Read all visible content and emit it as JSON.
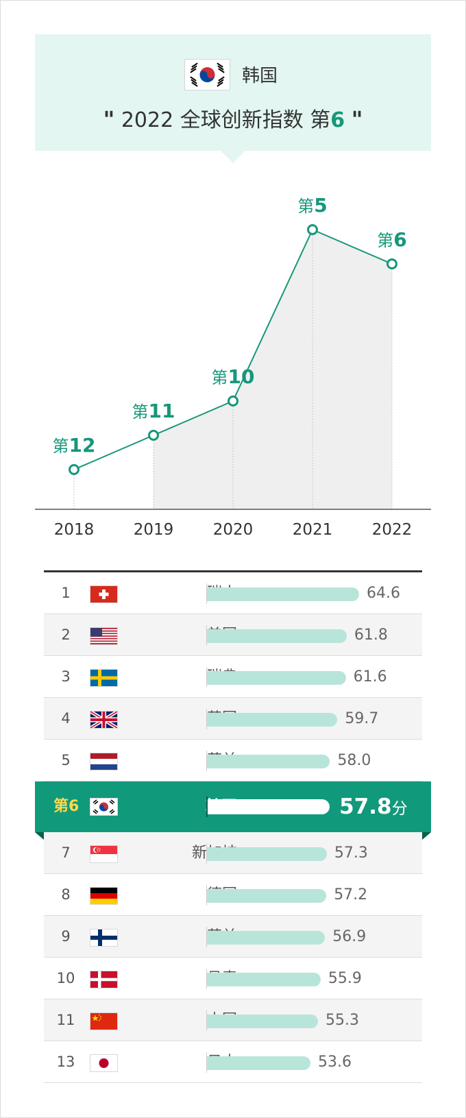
{
  "header": {
    "country": "韩国",
    "quote_open": "\"",
    "quote_close": "\"",
    "headline_prefix": "2022 全球创新指数 第",
    "headline_rank": "6"
  },
  "chart_data": {
    "type": "line",
    "x": [
      "2018",
      "2019",
      "2020",
      "2021",
      "2022"
    ],
    "series": [
      {
        "values": [
          12,
          11,
          10,
          5,
          6
        ]
      }
    ],
    "point_labels": [
      {
        "prefix": "第",
        "num": "12"
      },
      {
        "prefix": "第",
        "num": "11"
      },
      {
        "prefix": "第",
        "num": "10"
      },
      {
        "prefix": "第",
        "num": "5"
      },
      {
        "prefix": "第",
        "num": "6"
      }
    ],
    "y_inverted": true,
    "colors": {
      "line": "#16977a",
      "fill": "#efefef"
    }
  },
  "ranking": {
    "rows_before": [
      {
        "rank": "1",
        "name": "瑞士",
        "score": "64.6",
        "flag": "switzerland-flag"
      },
      {
        "rank": "2",
        "name": "美国",
        "score": "61.8",
        "flag": "usa-flag"
      },
      {
        "rank": "3",
        "name": "瑞典",
        "score": "61.6",
        "flag": "sweden-flag"
      },
      {
        "rank": "4",
        "name": "英国",
        "score": "59.7",
        "flag": "uk-flag"
      },
      {
        "rank": "5",
        "name": "荷兰",
        "score": "58.0",
        "flag": "netherlands-flag"
      }
    ],
    "highlight": {
      "rank": "第6",
      "name": "韩国",
      "score": "57.8",
      "unit": "分",
      "flag": "korea-flag"
    },
    "rows_after": [
      {
        "rank": "7",
        "name": "新加坡",
        "score": "57.3",
        "flag": "singapore-flag"
      },
      {
        "rank": "8",
        "name": "德国",
        "score": "57.2",
        "flag": "germany-flag"
      },
      {
        "rank": "9",
        "name": "芬兰",
        "score": "56.9",
        "flag": "finland-flag"
      },
      {
        "rank": "10",
        "name": "丹麦",
        "score": "55.9",
        "flag": "denmark-flag"
      },
      {
        "rank": "11",
        "name": "中国",
        "score": "55.3",
        "flag": "china-flag"
      },
      {
        "rank": "13",
        "name": "日本",
        "score": "53.6",
        "flag": "japan-flag"
      }
    ],
    "colors": {
      "bar": "#b8e5da",
      "highlight_bg": "#11997b",
      "highlight_rank": "#ffd84a"
    }
  }
}
